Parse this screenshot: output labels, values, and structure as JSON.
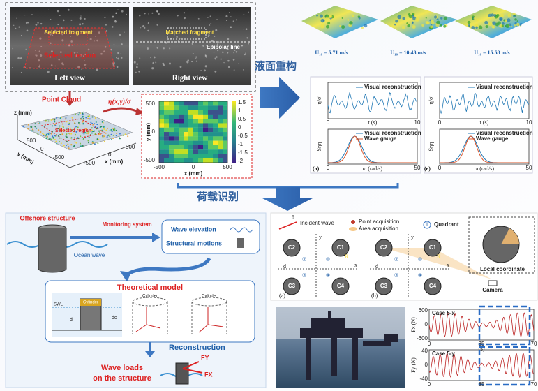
{
  "stereo": {
    "left": {
      "fragment": "Selected fragment",
      "region": "Selected region",
      "label": "Left view"
    },
    "right": {
      "fragment": "Matched fragment",
      "epipolar": "Epipolar line",
      "label": "Right view"
    }
  },
  "point_cloud": {
    "title": "Point Cloud",
    "z_label": "z (mm)",
    "y_label": "y (mm)",
    "x_label": "x (mm)",
    "region": "Selected region",
    "y_ticks": [
      "500",
      "0",
      "-500"
    ],
    "x_ticks": [
      "-500",
      "0",
      "500"
    ]
  },
  "arrow_label": "η(x,y)/σ",
  "heatmap": {
    "y_label": "y (mm)",
    "x_label": "x (mm)",
    "y_ticks": [
      "500",
      "0",
      "-500"
    ],
    "x_ticks": [
      "-500",
      "0",
      "500"
    ],
    "colorbar": [
      "1.5",
      "1",
      "0.5",
      "0",
      "-0.5",
      "-1",
      "-1.5",
      "-2"
    ]
  },
  "stage1": "液面重构",
  "stage2": "荷载识别",
  "wind_cases": [
    "U₁₀ = 5.71 m/s",
    "U₁₀ = 10.43 m/s",
    "U₁₀ = 15.58 m/s"
  ],
  "time_panels": [
    {
      "tag": "(a)",
      "eta_label": "η/σ",
      "legend": "Visual reconstruction",
      "t_ticks": [
        "0",
        "10"
      ],
      "t_label": "t (s)",
      "s_label": "Sηη",
      "legend2": [
        "Visual reconstruction",
        "Wave gauge"
      ],
      "w_ticks": [
        "0",
        "50"
      ],
      "w_label": "ω (rad/s)"
    },
    {
      "tag": "(e)",
      "eta_label": "η/σ",
      "legend": "Visual reconstruction",
      "t_ticks": [
        "0",
        "10"
      ],
      "t_label": "t (s)",
      "s_label": "Sηη",
      "legend2": [
        "Visual reconstruction",
        "Wave gauge"
      ],
      "w_ticks": [
        "0",
        "50"
      ],
      "w_label": "ω (rad/s)"
    }
  ],
  "workflow": {
    "structure": "Offshore structure",
    "wave": "Ocean wave",
    "monitoring": "Monitoring system",
    "elevation": "Wave elevation",
    "motions": "Structural motions",
    "model": "Theoretical model",
    "swl": "SWL",
    "cylinders": [
      "Cylinder",
      "Cylinder",
      "Cylinder"
    ],
    "d": "d",
    "dc": "dc",
    "reconstruction": "Reconstruction",
    "loads": "Wave loads",
    "loads2": "on the structure",
    "fy": "FY",
    "fx": "FX"
  },
  "layout": {
    "incident": "Incident wave",
    "theta": "θ",
    "point": "Point acquisition",
    "area": "Area acquisition",
    "quadrant": "Quadrant",
    "quadrant_icon": "i",
    "cylinders": [
      "C1",
      "C2",
      "C3",
      "C4"
    ],
    "quadrants": [
      "①",
      "②",
      "③",
      "④"
    ],
    "x": "x",
    "y": "y",
    "d": "d",
    "R": "R",
    "tags": [
      "(a)",
      "(b)"
    ],
    "local": "Local coordinate",
    "camera": "Camera"
  },
  "loads_plots": [
    {
      "case": "Case 5-x",
      "ylabel": "Fx (N)",
      "yticks": [
        "600",
        "0",
        "-600"
      ],
      "xticks": [
        "0",
        "35",
        "70"
      ],
      "xunit": "(s)"
    },
    {
      "case": "Case 5-y",
      "ylabel": "Fy (N)",
      "yticks": [
        "40",
        "0",
        "-40"
      ],
      "xticks": [
        "0",
        "35",
        "70"
      ]
    }
  ]
}
